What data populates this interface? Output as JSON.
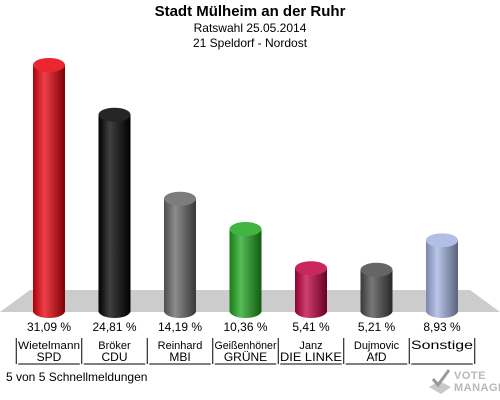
{
  "header": {
    "title": "Stadt Mülheim an der Ruhr",
    "line1": "Ratswahl 25.05.2014",
    "line2": "21 Speldorf - Nordost"
  },
  "footer": {
    "report_status": "5 von 5 Schnellmeldungen"
  },
  "watermark": {
    "line1": "VOTE",
    "line2": "MANAGER"
  },
  "chart_data": {
    "type": "bar",
    "unit": "%",
    "categories": [
      "SPD",
      "CDU",
      "MBI",
      "GRÜNE",
      "DIE LINKE",
      "AfD",
      "Sonstige"
    ],
    "candidates": [
      "Wietelmann",
      "Bröker",
      "Reinhard",
      "Geißenhöner",
      "Janz",
      "Dujmovic",
      ""
    ],
    "values": [
      31.09,
      24.81,
      14.19,
      10.36,
      5.41,
      5.21,
      8.93
    ],
    "value_labels": [
      "31,09 %",
      "24,81 %",
      "14,19 %",
      "10,36 %",
      "5,41 %",
      "5,21 %",
      "8,93 %"
    ],
    "colors": [
      "#e8000b",
      "#000000",
      "#666666",
      "#1ea51e",
      "#be0041",
      "#4a4a4a",
      "#a3b2e2"
    ],
    "ylim": [
      0,
      32
    ]
  }
}
